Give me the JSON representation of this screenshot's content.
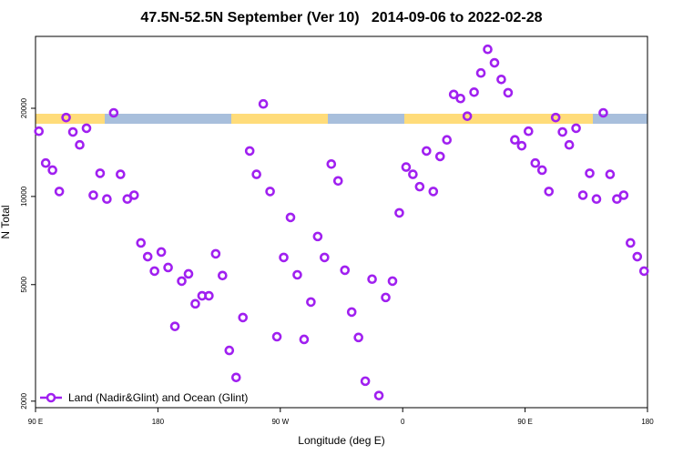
{
  "chart_data": {
    "type": "scatter",
    "title": "47.5N-52.5N September (Ver 10)   2014-09-06 to 2022-02-28",
    "x_label": "Longitude (deg E)",
    "y_label": "N Total",
    "xlim": [
      90,
      540
    ],
    "xticks": [
      {
        "value": 90,
        "label": "90 E"
      },
      {
        "value": 180,
        "label": "180"
      },
      {
        "value": 270,
        "label": "90 W"
      },
      {
        "value": 360,
        "label": "0"
      },
      {
        "value": 450,
        "label": "90 E"
      },
      {
        "value": 540,
        "label": "180"
      }
    ],
    "ylim": [
      1900,
      35200
    ],
    "log_y": true,
    "yticks": [
      2000,
      5000,
      10000,
      20000
    ],
    "legend": "bottom-left",
    "x": [
      92.5,
      97.5,
      102.5,
      107.5,
      112.5,
      117.5,
      122.5,
      127.5,
      132.5,
      137.5,
      142.5,
      147.5,
      152.5,
      157.5,
      162.5,
      167.5,
      172.5,
      177.5,
      182.5,
      187.5,
      192.5,
      197.5,
      202.5,
      207.5,
      212.5,
      217.5,
      222.5,
      227.5,
      232.5,
      237.5,
      242.5,
      247.5,
      252.5,
      257.5,
      262.5,
      267.5,
      272.5,
      277.5,
      282.5,
      287.5,
      292.5,
      297.5,
      302.5,
      307.5,
      312.5,
      317.5,
      322.5,
      327.5,
      332.5,
      337.5,
      342.5,
      347.5,
      352.5,
      357.5,
      362.5,
      367.5,
      372.5,
      377.5,
      382.5,
      387.5,
      392.5,
      397.5,
      402.5,
      407.5,
      412.5,
      417.5,
      422.5,
      427.5,
      432.5,
      437.5,
      442.5,
      447.5,
      452.5,
      457.5,
      462.5,
      467.5,
      472.5,
      477.5,
      482.5,
      487.5,
      492.5,
      497.5,
      502.5,
      507.5,
      512.5,
      517.5,
      522.5,
      527.5,
      532.5,
      537.5
    ],
    "series": [
      {
        "name": "Land (Nadir&Glint) and Ocean (Glint)",
        "color": "#a020f0",
        "values": [
          16700,
          13000,
          12300,
          10400,
          18600,
          16600,
          15000,
          17100,
          10100,
          12000,
          9800,
          19300,
          11900,
          9800,
          10100,
          6940,
          6230,
          5560,
          6460,
          5720,
          3600,
          5140,
          5440,
          4300,
          4580,
          4580,
          6370,
          5370,
          2980,
          2410,
          3860,
          14300,
          11900,
          20700,
          10400,
          3320,
          6190,
          8480,
          5400,
          3250,
          4360,
          7300,
          6190,
          12900,
          11300,
          5600,
          4030,
          3300,
          2340,
          5220,
          2090,
          4520,
          5140,
          8790,
          12600,
          11900,
          10800,
          14300,
          10400,
          13700,
          15600,
          22300,
          21600,
          18800,
          22700,
          26400,
          31800,
          28600,
          25100,
          22600,
          15600,
          14900,
          16700,
          13000,
          12300,
          10400,
          18600,
          16600,
          15000,
          17100,
          10100,
          12000,
          9800,
          19300,
          11900,
          9800,
          10100,
          6940,
          6230,
          5560
        ]
      }
    ]
  }
}
